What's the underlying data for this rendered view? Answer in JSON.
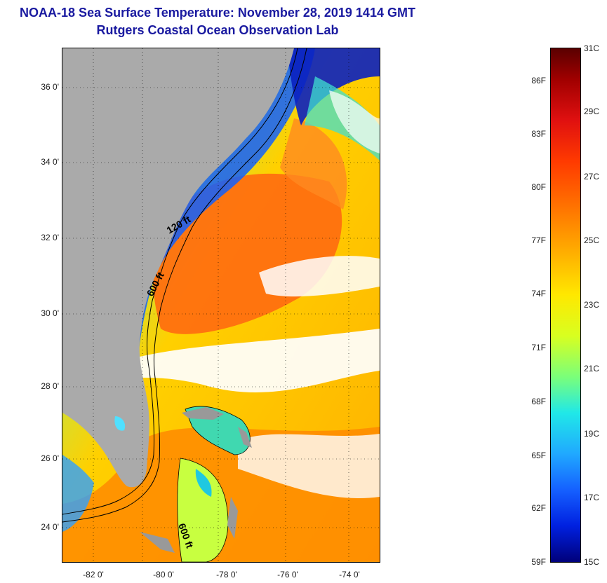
{
  "title": "NOAA-18 Sea Surface Temperature:  November 28, 2019 1414 GMT",
  "subtitle": "Rutgers Coastal Ocean Observation Lab",
  "axes": {
    "y_labels": [
      "36 0'",
      "34 0'",
      "32 0'",
      "30 0'",
      "28 0'",
      "26 0'",
      "24 0'"
    ],
    "x_labels": [
      "-82 0'",
      "-80 0'",
      "-78 0'",
      "-76 0'",
      "-74 0'"
    ]
  },
  "contours": {
    "shelf_120": "120 ft",
    "shelf_600_north": "600 ft",
    "shelf_600_south": "600 ft"
  },
  "colorbar": {
    "fahrenheit": [
      "86F",
      "83F",
      "80F",
      "77F",
      "74F",
      "71F",
      "68F",
      "65F",
      "62F",
      "59F"
    ],
    "celsius": [
      "31C",
      "29C",
      "27C",
      "25C",
      "23C",
      "21C",
      "19C",
      "17C",
      "15C"
    ]
  },
  "colors": {
    "title": "#1a1aa0",
    "land": "#aaaaaa",
    "cloud": "#ffffff"
  }
}
